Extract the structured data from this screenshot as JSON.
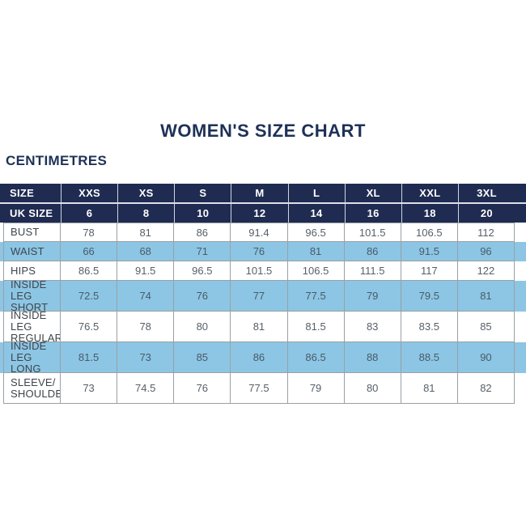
{
  "colors": {
    "navy": "#1f2b51",
    "title_navy": "#1e3157",
    "stripe_blue": "#8cc6e4",
    "grid_gray": "#9aa0a5",
    "number_text": "#575f67",
    "label_text": "#3e454c"
  },
  "chart_data": {
    "type": "table",
    "title": "WOMEN'S SIZE CHART",
    "unit": "CENTIMETRES",
    "corner_label": "SIZE",
    "uk_size_label": "UK SIZE",
    "size_labels": [
      "XXS",
      "XS",
      "S",
      "M",
      "L",
      "XL",
      "XXL",
      "3XL"
    ],
    "uk_sizes": [
      "6",
      "8",
      "10",
      "12",
      "14",
      "16",
      "18",
      "20"
    ],
    "measurements": [
      {
        "label": "BUST",
        "values": [
          "78",
          "81",
          "86",
          "91.4",
          "96.5",
          "101.5",
          "106.5",
          "112"
        ]
      },
      {
        "label": "WAIST",
        "values": [
          "66",
          "68",
          "71",
          "76",
          "81",
          "86",
          "91.5",
          "96"
        ]
      },
      {
        "label": "HIPS",
        "values": [
          "86.5",
          "91.5",
          "96.5",
          "101.5",
          "106.5",
          "111.5",
          "117",
          "122"
        ]
      },
      {
        "label": "INSIDE LEG\nSHORT",
        "values": [
          "72.5",
          "74",
          "76",
          "77",
          "77.5",
          "79",
          "79.5",
          "81"
        ]
      },
      {
        "label": "INSIDE LEG\nREGULAR",
        "values": [
          "76.5",
          "78",
          "80",
          "81",
          "81.5",
          "83",
          "83.5",
          "85"
        ]
      },
      {
        "label": "INSIDE LEG\nLONG",
        "values": [
          "81.5",
          "73",
          "85",
          "86",
          "86.5",
          "88",
          "88.5",
          "90"
        ]
      },
      {
        "label": "SLEEVE/\nSHOULDER",
        "values": [
          "73",
          "74.5",
          "76",
          "77.5",
          "79",
          "80",
          "81",
          "82"
        ]
      }
    ]
  }
}
